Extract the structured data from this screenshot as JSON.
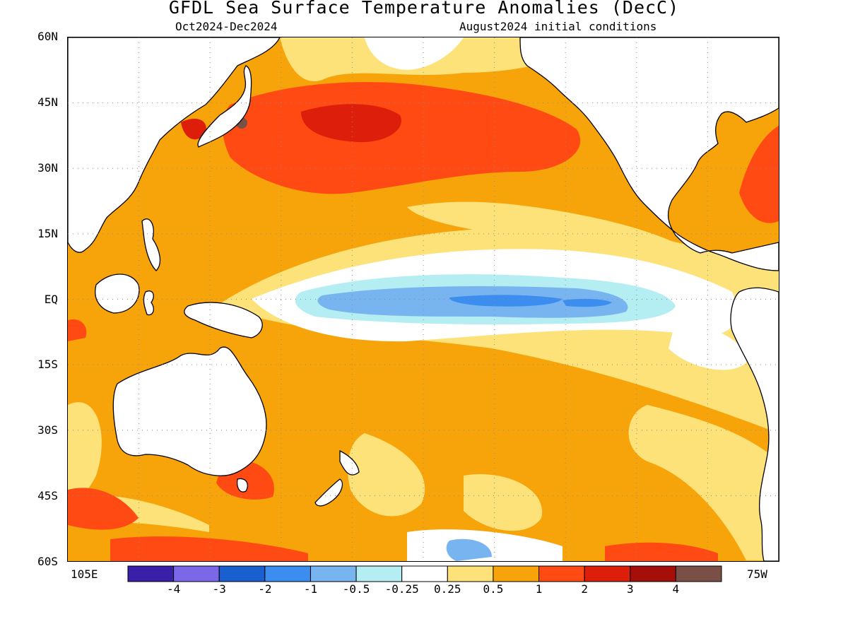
{
  "title": "GFDL Sea Surface Temperature Anomalies (DecC)",
  "subtitle_left": "Oct2024-Dec2024",
  "subtitle_right": "August2024 initial conditions",
  "y_axis": {
    "ticks": [
      "60N",
      "45N",
      "30N",
      "15N",
      "EQ",
      "15S",
      "30S",
      "45S",
      "60S"
    ]
  },
  "x_axis": {
    "left_label": "105E",
    "right_label": "75W"
  },
  "colorbar": {
    "colors": [
      "#3a20a8",
      "#7b68e8",
      "#1a5fcf",
      "#3c8df0",
      "#78b4f0",
      "#b4eef2",
      "#ffffff",
      "#fde27a",
      "#f7a30a",
      "#ff4a14",
      "#dc1e0a",
      "#a50f0a",
      "#7a5046"
    ],
    "labels": [
      "-4",
      "-3",
      "-2",
      "-1",
      "-0.5",
      "-0.25",
      "0.25",
      "0.5",
      "1",
      "2",
      "3",
      "4"
    ]
  },
  "palette": {
    "land": "#ffffff",
    "coast": "#000000",
    "grid": "#8c8c8c"
  }
}
